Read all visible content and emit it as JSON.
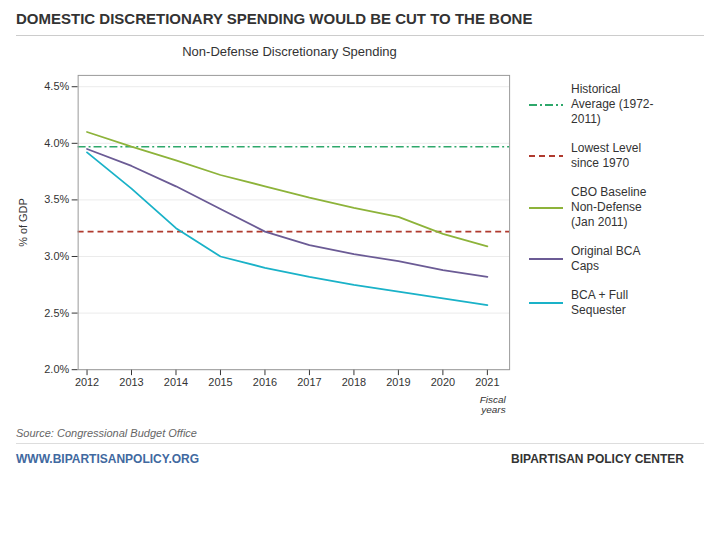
{
  "chart_data": {
    "type": "line",
    "title": "DOMESTIC DISCRETIONARY SPENDING WOULD BE CUT TO THE BONE",
    "subtitle": "Non-Defense Discretionary Spending",
    "ylabel": "% of GDP",
    "xlabel": "Fiscal\nyears",
    "annotations": [
      "Source: Congressional Budget Office",
      "WWW.BIPARTISANPOLICY.ORG",
      "BIPARTISAN POLICY CENTER"
    ],
    "x": [
      2012,
      2013,
      2014,
      2015,
      2016,
      2017,
      2018,
      2019,
      2020,
      2021
    ],
    "series": [
      {
        "name": "Historical\nAverage (1972-\n2011)",
        "type": "hline",
        "color": "#2ea86b",
        "line_style": "dashdot",
        "value": 3.97
      },
      {
        "name": "Lowest Level\nsince 1970",
        "type": "hline",
        "color": "#b03a2e",
        "line_style": "dashed",
        "value": 3.22
      },
      {
        "name": "CBO Baseline\nNon-Defense\n(Jan 2011)",
        "type": "line",
        "color": "#8db33a",
        "line_style": "solid",
        "values": [
          4.1,
          3.97,
          3.85,
          3.72,
          3.62,
          3.52,
          3.43,
          3.35,
          3.2,
          3.09
        ]
      },
      {
        "name": "Original BCA\nCaps",
        "type": "line",
        "color": "#6b5b95",
        "line_style": "solid",
        "values": [
          3.95,
          3.8,
          3.62,
          3.42,
          3.22,
          3.1,
          3.02,
          2.96,
          2.88,
          2.82
        ]
      },
      {
        "name": "BCA + Full\nSequester",
        "type": "line",
        "color": "#1ab2c8",
        "line_style": "solid",
        "values": [
          3.92,
          3.6,
          3.25,
          3.0,
          2.9,
          2.82,
          2.75,
          2.69,
          2.63,
          2.57
        ]
      }
    ],
    "xlim": [
      2011.8,
      2021.5
    ],
    "xticks": [
      2012,
      2013,
      2014,
      2015,
      2016,
      2017,
      2018,
      2019,
      2020,
      2021
    ],
    "ylim": [
      2.0,
      4.6
    ],
    "yticks": [
      {
        "value": 2.0,
        "label": "2.0%"
      },
      {
        "value": 2.5,
        "label": "2.5%"
      },
      {
        "value": 3.0,
        "label": "3.0%"
      },
      {
        "value": 3.5,
        "label": "3.5%"
      },
      {
        "value": 4.0,
        "label": "4.0%"
      },
      {
        "value": 4.5,
        "label": "4.5%"
      }
    ],
    "grid": "y",
    "legend": "right"
  }
}
